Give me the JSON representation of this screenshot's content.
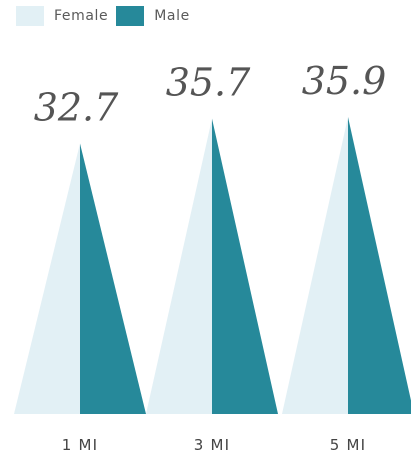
{
  "chart_data": {
    "type": "bar",
    "categories": [
      "1 MI",
      "3 MI",
      "5 MI"
    ],
    "series": [
      {
        "name": "Female",
        "values": [
          32.7,
          35.7,
          35.9
        ],
        "color": "#E2F0F5"
      },
      {
        "name": "Male",
        "values": [
          32.7,
          35.7,
          35.9
        ],
        "color": "#26899A"
      }
    ],
    "data_labels": [
      "32.7",
      "35.7",
      "35.9"
    ],
    "legend_position": "top-left",
    "grid": false
  }
}
